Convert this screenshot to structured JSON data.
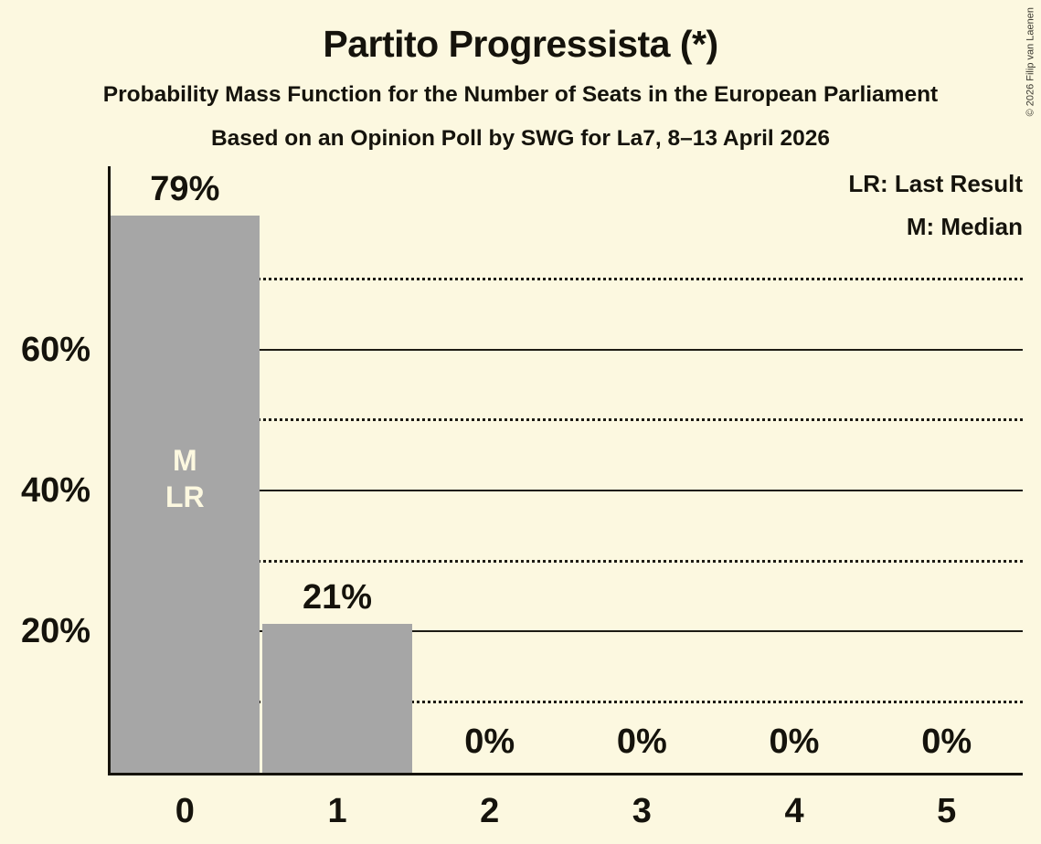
{
  "header": {
    "title": "Partito Progressista (*)",
    "subtitle": "Probability Mass Function for the Number of Seats in the European Parliament",
    "poll_info": "Based on an Opinion Poll by SWG for La7, 8–13 April 2026"
  },
  "copyright": "© 2026 Filip van Laenen",
  "legend": {
    "last_result": "LR: Last Result",
    "median": "M: Median"
  },
  "chart_data": {
    "type": "bar",
    "title": "Partito Progressista (*)",
    "xlabel": "",
    "ylabel": "",
    "categories": [
      "0",
      "1",
      "2",
      "3",
      "4",
      "5"
    ],
    "values": [
      79,
      21,
      0,
      0,
      0,
      0
    ],
    "value_labels": [
      "79%",
      "21%",
      "0%",
      "0%",
      "0%",
      "0%"
    ],
    "bar_annotations": [
      [
        "M",
        "LR"
      ],
      [],
      [],
      [],
      [],
      []
    ],
    "ylim": [
      0,
      86
    ],
    "yticks_labeled": [
      {
        "pct": 20,
        "label": "20%"
      },
      {
        "pct": 40,
        "label": "40%"
      },
      {
        "pct": 60,
        "label": "60%"
      }
    ],
    "yticks_dotted": [
      10,
      30,
      50,
      70
    ],
    "grid": "horizontal",
    "legend_position": "top-right",
    "colors": {
      "background": "#FCF8E0",
      "bar": "#A6A6A6",
      "text": "#15130C",
      "bar_annotation_text": "#FCF8E0"
    }
  }
}
